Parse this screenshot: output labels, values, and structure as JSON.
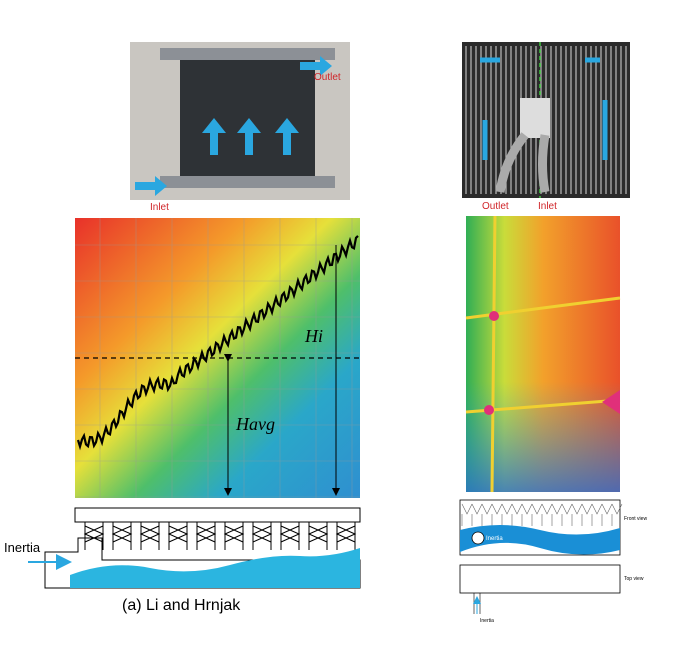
{
  "left": {
    "photo": {
      "outlet_label": "Outlet",
      "inlet_label": "Inlet"
    },
    "thermal": {
      "hi_label": "Hi",
      "havg_label": "Havg"
    },
    "diagram": {
      "inertia_label": "Inertia"
    },
    "caption": "(a) Li and Hrnjak"
  },
  "right": {
    "photo": {
      "outlet_label": "Outlet",
      "inlet_label": "Inlet"
    },
    "diagram": {
      "front_view_label": "Front view",
      "inertia_label": "Inertia",
      "top_view_label": "Top view",
      "inlet_inertia_label": "Inertia"
    }
  }
}
